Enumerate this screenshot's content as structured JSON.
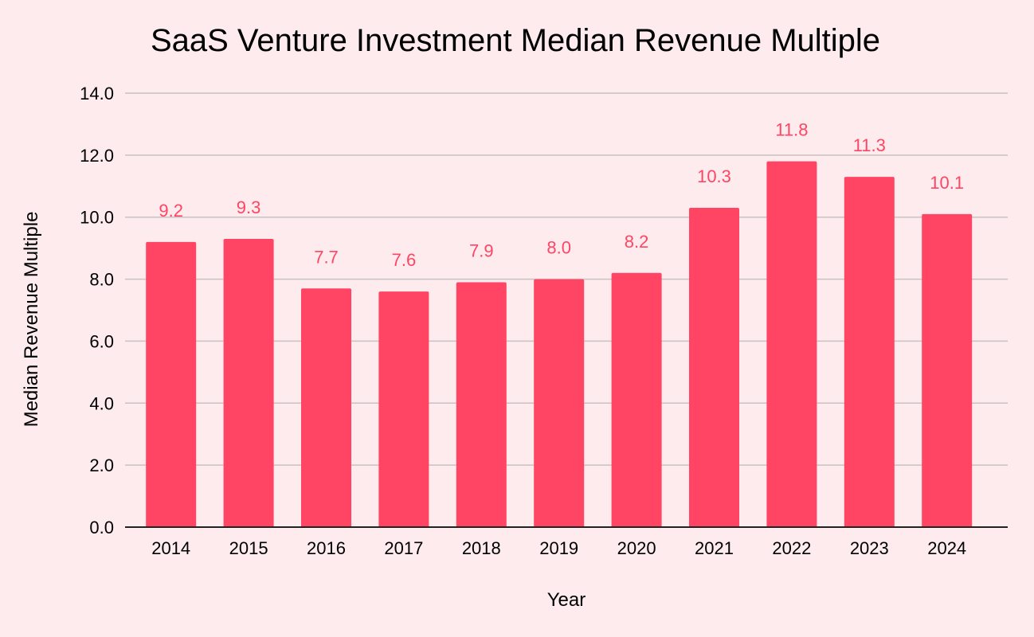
{
  "colors": {
    "background": "#FDEBED",
    "bar": "#FF4563",
    "data_label": "#FF4563",
    "gridline": "#C9C1C3",
    "axis_line": "#222222",
    "text": "#000000"
  },
  "chart_data": {
    "type": "bar",
    "title": "SaaS Venture Investment Median Revenue Multiple",
    "xlabel": "Year",
    "ylabel": "Median Revenue Multiple",
    "categories": [
      "2014",
      "2015",
      "2016",
      "2017",
      "2018",
      "2019",
      "2020",
      "2021",
      "2022",
      "2023",
      "2024"
    ],
    "values": [
      9.2,
      9.3,
      7.7,
      7.6,
      7.9,
      8.0,
      8.2,
      10.3,
      11.8,
      11.3,
      10.1
    ],
    "data_labels": [
      "9.2",
      "9.3",
      "7.7",
      "7.6",
      "7.9",
      "8.0",
      "8.2",
      "10.3",
      "11.8",
      "11.3",
      "10.1"
    ],
    "y_ticks": [
      0,
      2,
      4,
      6,
      8,
      10,
      12,
      14
    ],
    "y_tick_labels": [
      "0.0",
      "2.0",
      "4.0",
      "6.0",
      "8.0",
      "10.0",
      "12.0",
      "14.0"
    ],
    "ylim": [
      0,
      14
    ],
    "grid": true,
    "legend": "none"
  }
}
